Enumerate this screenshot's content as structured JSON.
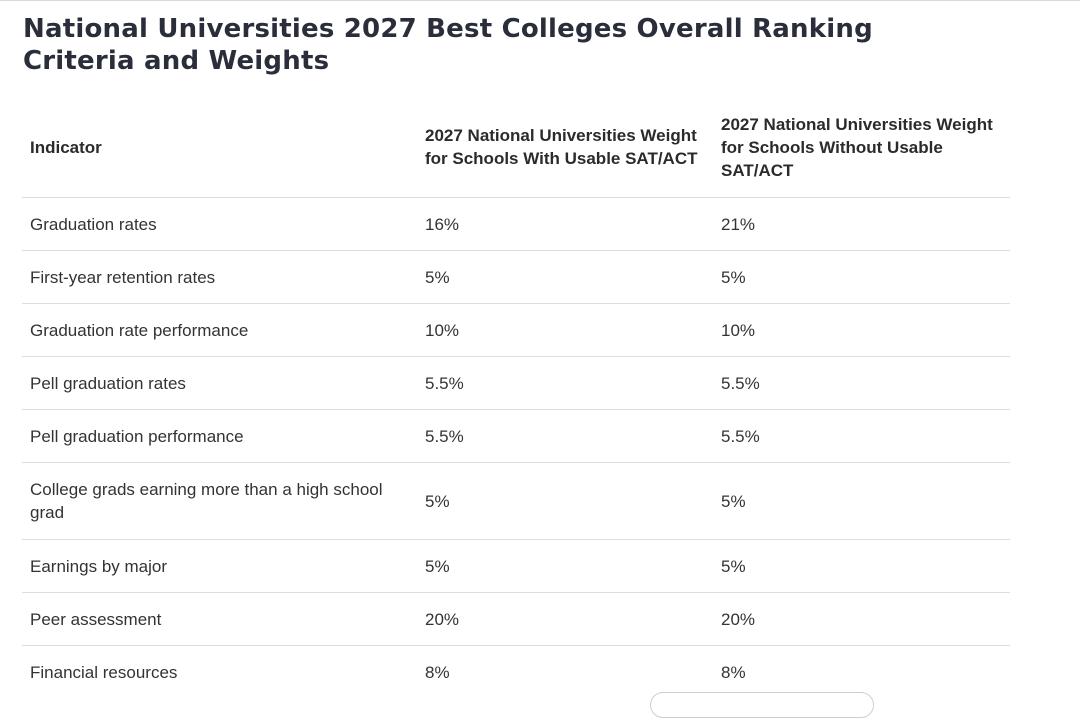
{
  "page": {
    "title": "National Universities 2027 Best Colleges Overall Ranking Criteria and Weights"
  },
  "table": {
    "headers": {
      "indicator": "Indicator",
      "with_sat_act": "2027 National Universities Weight for Schools With Usable SAT/ACT",
      "without_sat_act": "2027 National Universities Weight for Schools Without Usable SAT/ACT"
    },
    "rows": [
      {
        "indicator": "Graduation rates",
        "with_sat_act": "16%",
        "without_sat_act": "21%"
      },
      {
        "indicator": "First-year retention rates",
        "with_sat_act": "5%",
        "without_sat_act": "5%"
      },
      {
        "indicator": "Graduation rate performance",
        "with_sat_act": "10%",
        "without_sat_act": "10%"
      },
      {
        "indicator": "Pell graduation rates",
        "with_sat_act": "5.5%",
        "without_sat_act": "5.5%"
      },
      {
        "indicator": "Pell graduation performance",
        "with_sat_act": "5.5%",
        "without_sat_act": "5.5%"
      },
      {
        "indicator": "College grads earning more than a high school grad",
        "with_sat_act": "5%",
        "without_sat_act": "5%"
      },
      {
        "indicator": "Earnings by major",
        "with_sat_act": "5%",
        "without_sat_act": "5%"
      },
      {
        "indicator": "Peer assessment",
        "with_sat_act": "20%",
        "without_sat_act": "20%"
      },
      {
        "indicator": "Financial resources",
        "with_sat_act": "8%",
        "without_sat_act": "8%"
      }
    ]
  }
}
